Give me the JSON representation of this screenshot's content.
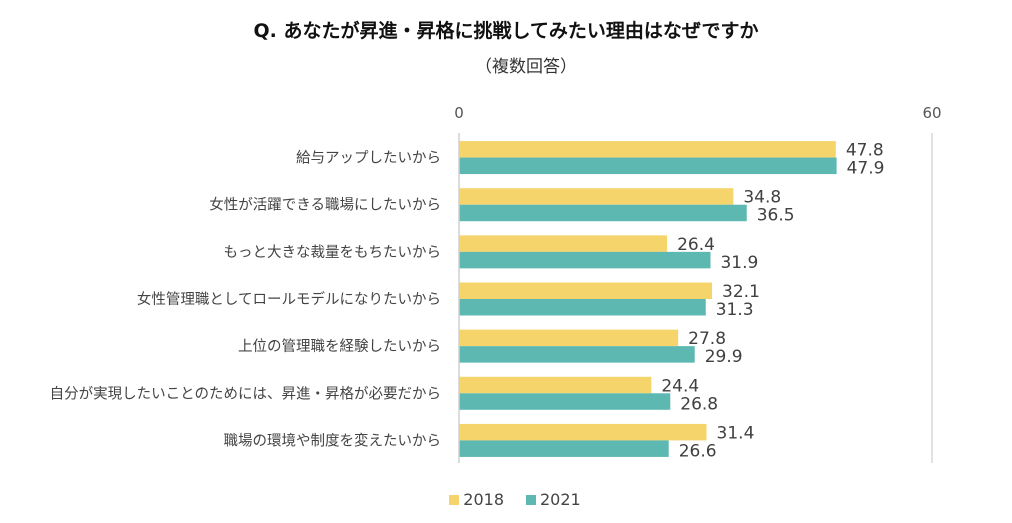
{
  "chart_data": {
    "type": "bar",
    "orientation": "horizontal",
    "title": "Q. あなたが昇進・昇格に挑戦してみたい理由はなぜですか",
    "subtitle": "（複数回答）",
    "categories": [
      "給与アップしたいから",
      "女性が活躍できる職場にしたいから",
      "もっと大きな裁量をもちたいから",
      "女性管理職としてロールモデルになりたいから",
      "上位の管理職を経験したいから",
      "自分が実現したいことのためには、昇進・昇格が必要だから",
      "職場の環境や制度を変えたいから"
    ],
    "series": [
      {
        "name": "2018",
        "color": "#F5D46C",
        "values": [
          47.8,
          34.8,
          26.4,
          32.1,
          27.8,
          24.4,
          31.4
        ]
      },
      {
        "name": "2021",
        "color": "#5CB8B1",
        "values": [
          47.9,
          36.5,
          31.9,
          31.3,
          29.9,
          26.8,
          26.6
        ]
      }
    ],
    "xlim": [
      0,
      60
    ],
    "xticks": [
      "0",
      "60"
    ],
    "xaxis_position": "top",
    "grid": true,
    "legend_position": "bottom"
  }
}
